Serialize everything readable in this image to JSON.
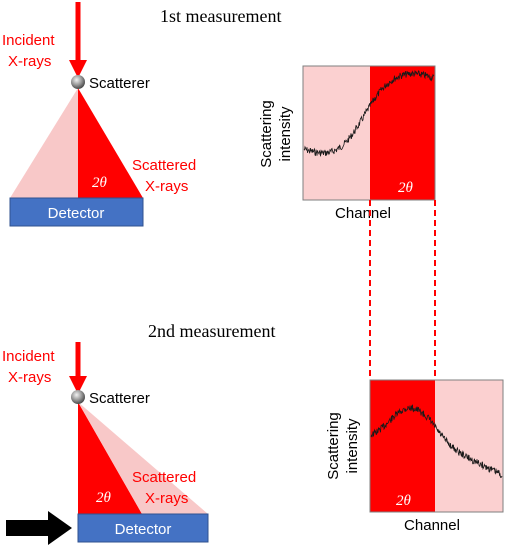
{
  "measurements": [
    {
      "title": "1st measurement",
      "incident_label": [
        "Incident",
        "X-rays"
      ],
      "scatterer_label": "Scatterer",
      "scattered_label": [
        "Scattered",
        "X-rays"
      ],
      "angle_label": "2θ",
      "detector_label": "Detector",
      "plot": {
        "ylabel": [
          "Scattering",
          "intensity"
        ],
        "xlabel": "Channel",
        "angle_label": "2θ"
      }
    },
    {
      "title": "2nd measurement",
      "incident_label": [
        "Incident",
        "X-rays"
      ],
      "scatterer_label": "Scatterer",
      "scattered_label": [
        "Scattered",
        "X-rays"
      ],
      "angle_label": "2θ",
      "detector_label": "Detector",
      "plot": {
        "ylabel": [
          "Scattering",
          "intensity"
        ],
        "xlabel": "Channel",
        "angle_label": "2θ"
      }
    }
  ],
  "colors": {
    "red": "#ff0000",
    "light_red": "#f8c8c8",
    "plot_light": "#fbd0d0",
    "detector_fill": "#4472c4",
    "detector_text": "#ffffff",
    "arrow": "#000000",
    "curve": "#1a1a1a"
  }
}
